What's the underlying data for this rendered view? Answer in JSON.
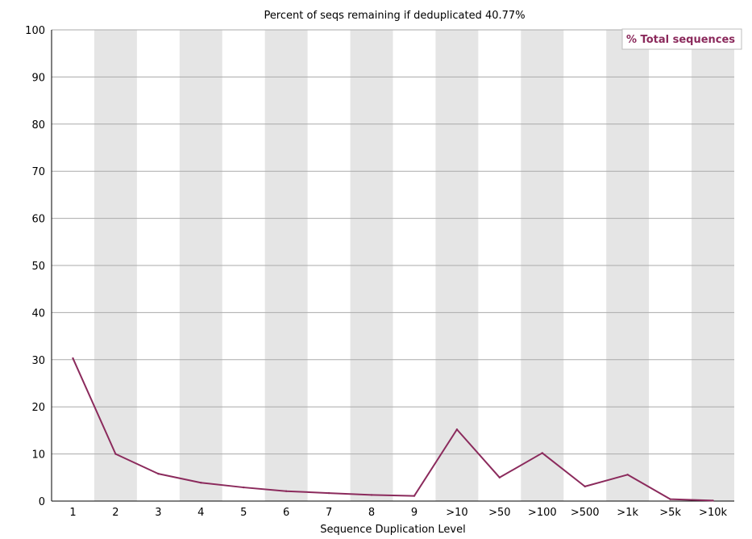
{
  "chart_data": {
    "type": "line",
    "title": "Percent of seqs remaining if deduplicated 40.77%",
    "xlabel": "Sequence Duplication Level",
    "ylabel": "",
    "categories": [
      "1",
      "2",
      "3",
      "4",
      "5",
      "6",
      "7",
      "8",
      "9",
      ">10",
      ">50",
      ">100",
      ">500",
      ">1k",
      ">5k",
      ">10k"
    ],
    "series": [
      {
        "name": "% Total sequences",
        "color": "#8b2a5c",
        "values": [
          30.3,
          10.0,
          5.8,
          3.9,
          2.9,
          2.1,
          1.7,
          1.3,
          1.1,
          15.2,
          5.0,
          10.2,
          3.1,
          5.6,
          0.4,
          0.1
        ]
      }
    ],
    "ylim": [
      0,
      100
    ],
    "yticks": [
      "0",
      "10",
      "20",
      "30",
      "40",
      "50",
      "60",
      "70",
      "80",
      "90",
      "100"
    ],
    "grid": true,
    "legend_position": "top-right",
    "alternating_band_color": "#e5e5e5"
  }
}
